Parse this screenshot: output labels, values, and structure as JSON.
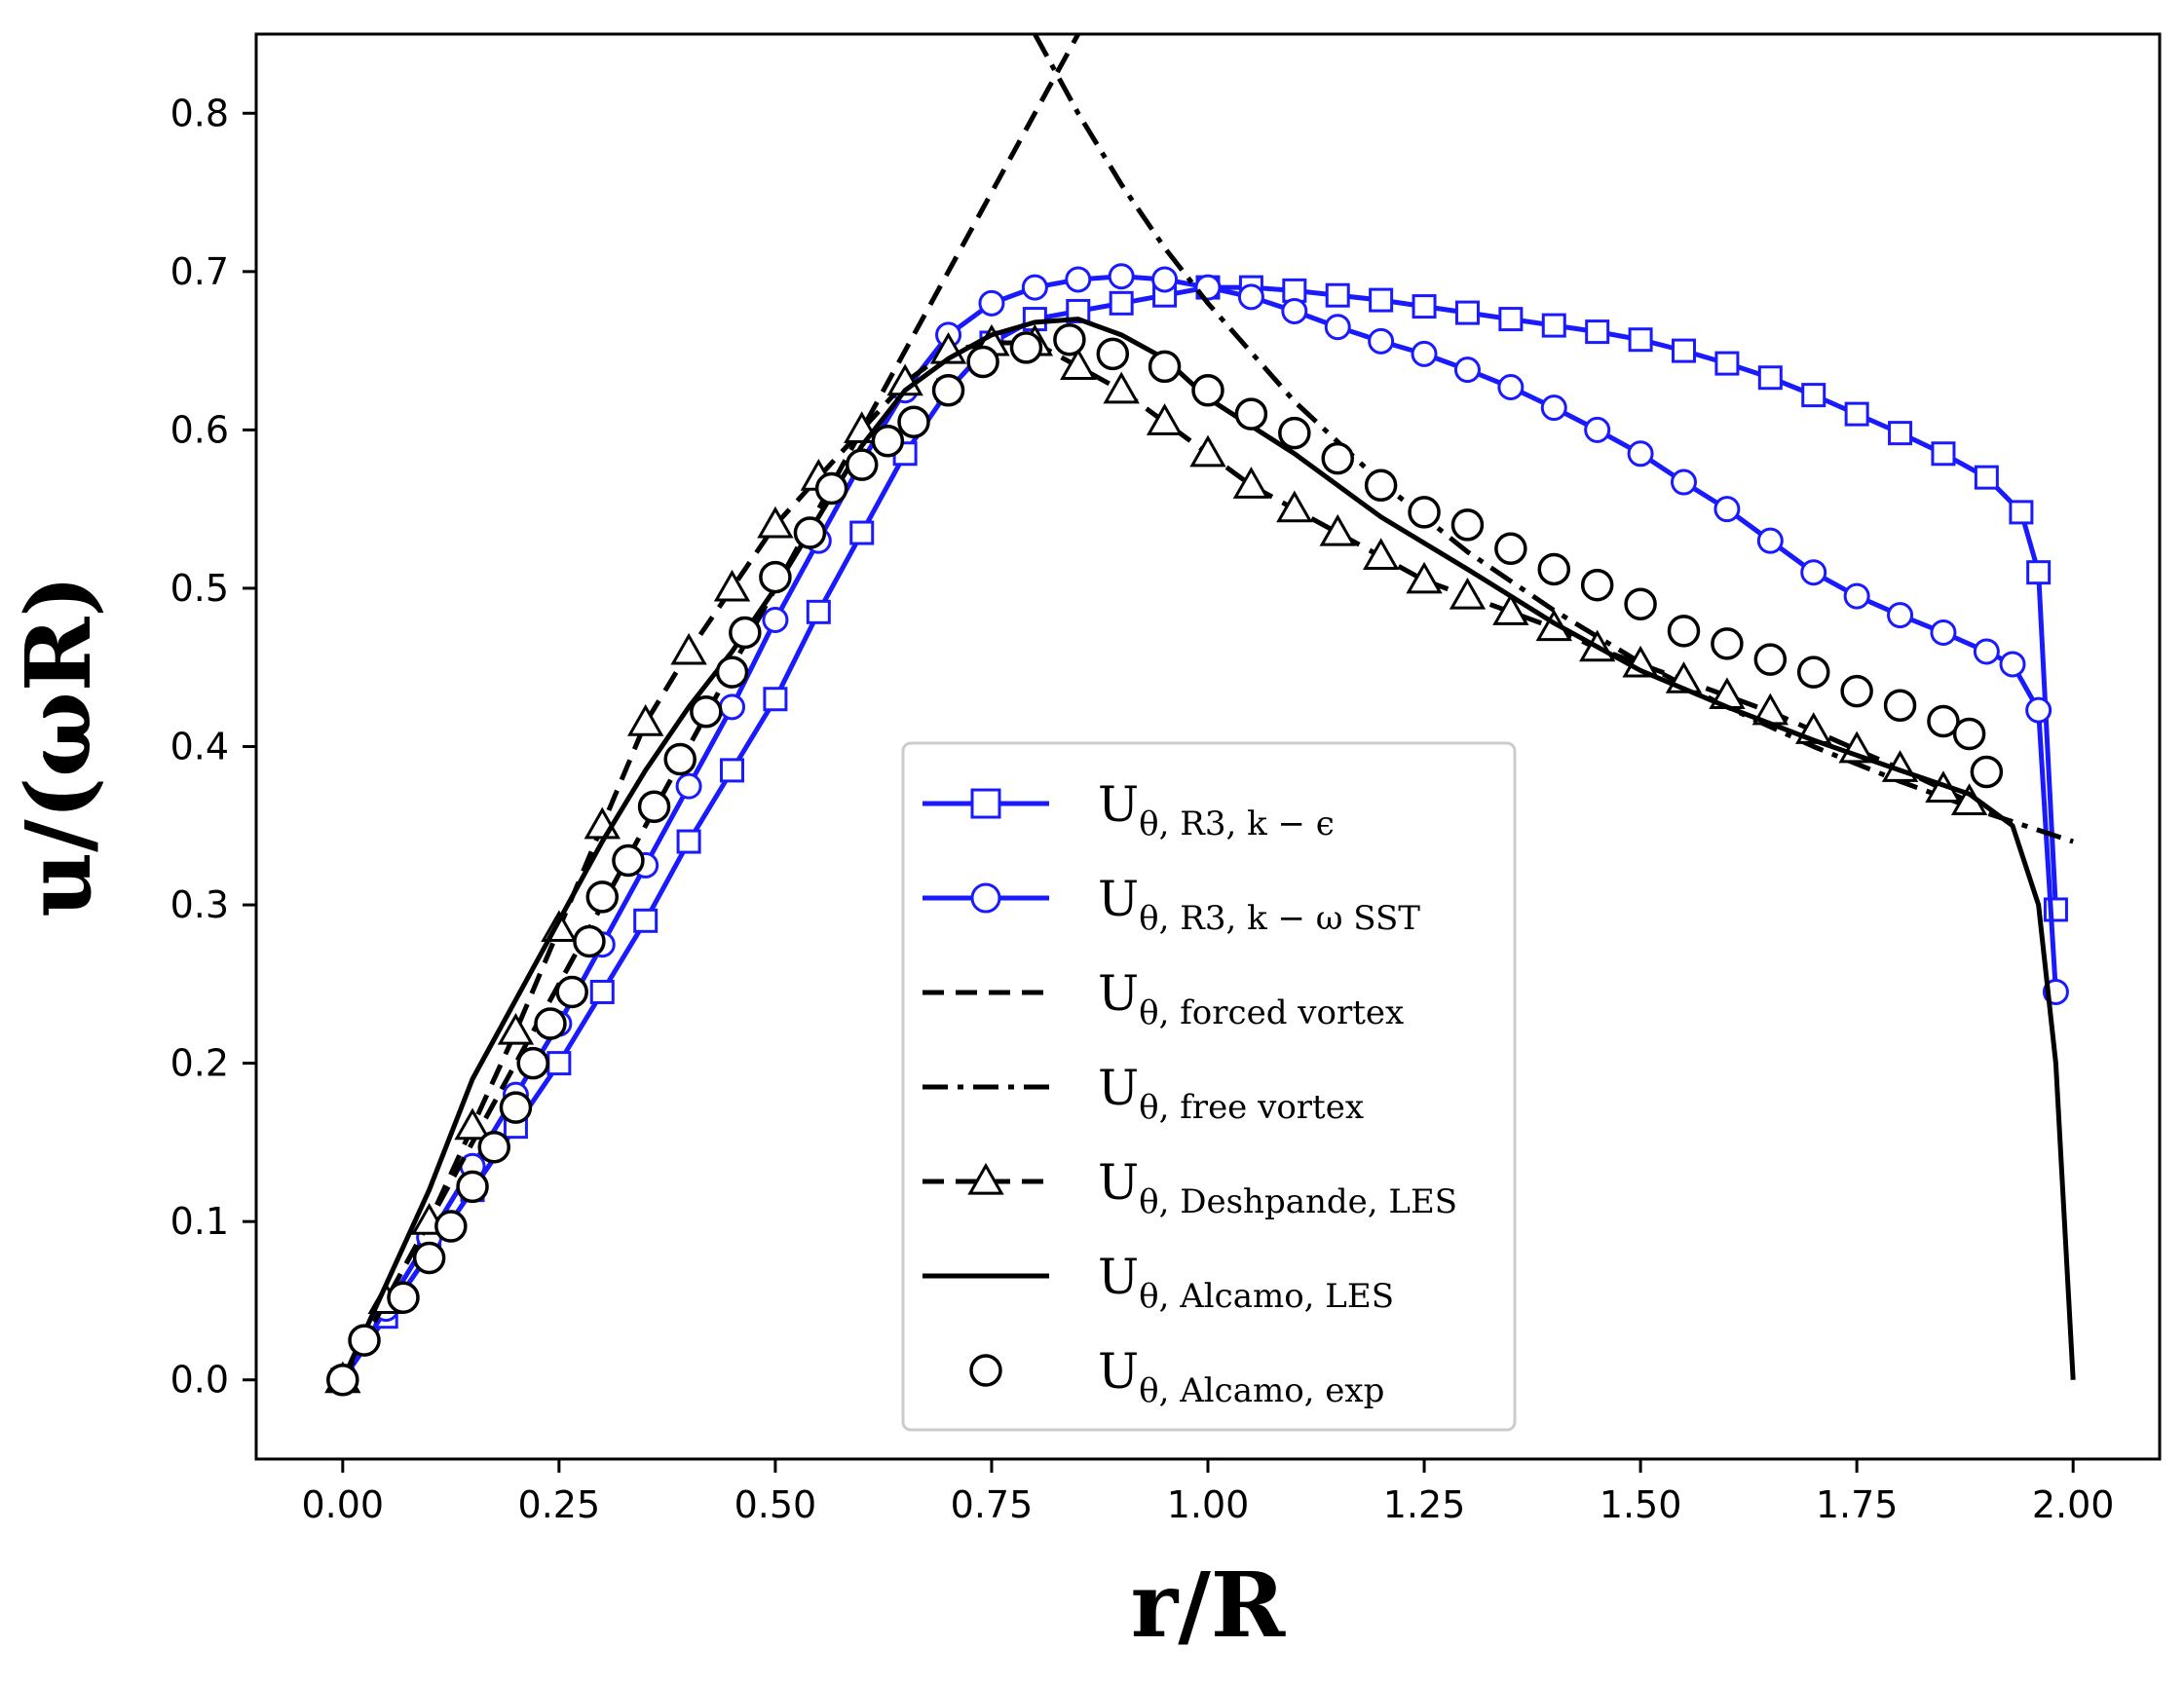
{
  "chart_data": {
    "type": "line",
    "xlabel": "r/R",
    "ylabel": "u/(ωR)",
    "xlim": [
      -0.1,
      2.1
    ],
    "ylim": [
      -0.05,
      0.85
    ],
    "xticks": [
      0.0,
      0.25,
      0.5,
      0.75,
      1.0,
      1.25,
      1.5,
      1.75,
      2.0
    ],
    "xtick_labels": [
      "0.00",
      "0.25",
      "0.50",
      "0.75",
      "1.00",
      "1.25",
      "1.50",
      "1.75",
      "2.00"
    ],
    "yticks": [
      0.0,
      0.1,
      0.2,
      0.3,
      0.4,
      0.5,
      0.6,
      0.7,
      0.8
    ],
    "ytick_labels": [
      "0.0",
      "0.1",
      "0.2",
      "0.3",
      "0.4",
      "0.5",
      "0.6",
      "0.7",
      "0.8"
    ],
    "grid": false,
    "legend_position": "lower-center",
    "series": [
      {
        "name": "U_{θ, R3, k − ε}",
        "legend_label": {
          "base": "U",
          "sub": "θ, R3, k − ϵ"
        },
        "color": "#1a1aff",
        "line": "solid",
        "marker": "square",
        "x": [
          0.0,
          0.05,
          0.1,
          0.15,
          0.2,
          0.25,
          0.3,
          0.35,
          0.4,
          0.45,
          0.5,
          0.55,
          0.6,
          0.65,
          0.7,
          0.75,
          0.8,
          0.85,
          0.9,
          0.95,
          1.0,
          1.05,
          1.1,
          1.15,
          1.2,
          1.25,
          1.3,
          1.35,
          1.4,
          1.45,
          1.5,
          1.55,
          1.6,
          1.65,
          1.7,
          1.75,
          1.8,
          1.85,
          1.9,
          1.94,
          1.96,
          1.98
        ],
        "y": [
          0.0,
          0.04,
          0.08,
          0.12,
          0.16,
          0.2,
          0.245,
          0.29,
          0.34,
          0.385,
          0.43,
          0.485,
          0.535,
          0.585,
          0.625,
          0.655,
          0.67,
          0.675,
          0.68,
          0.685,
          0.69,
          0.69,
          0.688,
          0.685,
          0.682,
          0.678,
          0.674,
          0.67,
          0.666,
          0.662,
          0.657,
          0.65,
          0.642,
          0.633,
          0.622,
          0.61,
          0.598,
          0.585,
          0.57,
          0.548,
          0.51,
          0.297
        ]
      },
      {
        "name": "U_{θ, R3, k − ω SST}",
        "legend_label": {
          "base": "U",
          "sub": "θ, R3, k − ω SST"
        },
        "color": "#1a1aff",
        "line": "solid",
        "marker": "circle",
        "x": [
          0.0,
          0.05,
          0.1,
          0.15,
          0.2,
          0.25,
          0.3,
          0.35,
          0.4,
          0.45,
          0.5,
          0.55,
          0.6,
          0.65,
          0.7,
          0.75,
          0.8,
          0.85,
          0.9,
          0.95,
          1.0,
          1.05,
          1.1,
          1.15,
          1.2,
          1.25,
          1.3,
          1.35,
          1.4,
          1.45,
          1.5,
          1.55,
          1.6,
          1.65,
          1.7,
          1.75,
          1.8,
          1.85,
          1.9,
          1.93,
          1.96,
          1.98
        ],
        "y": [
          0.0,
          0.045,
          0.09,
          0.135,
          0.18,
          0.225,
          0.275,
          0.325,
          0.375,
          0.425,
          0.48,
          0.53,
          0.58,
          0.625,
          0.66,
          0.68,
          0.69,
          0.695,
          0.697,
          0.695,
          0.69,
          0.684,
          0.675,
          0.665,
          0.656,
          0.648,
          0.638,
          0.627,
          0.614,
          0.6,
          0.585,
          0.567,
          0.55,
          0.53,
          0.51,
          0.495,
          0.483,
          0.472,
          0.46,
          0.452,
          0.423,
          0.245
        ]
      },
      {
        "name": "U_{θ, forced vortex}",
        "legend_label": {
          "base": "U",
          "sub": "θ, forced vortex"
        },
        "color": "#000000",
        "line": "dashed",
        "marker": "none",
        "x": [
          0.0,
          0.85
        ],
        "y": [
          0.0,
          0.85
        ]
      },
      {
        "name": "U_{θ, free vortex}",
        "legend_label": {
          "base": "U",
          "sub": "θ, free vortex"
        },
        "color": "#000000",
        "line": "dashdot",
        "marker": "none",
        "x": [
          0.8,
          0.82,
          0.85,
          0.9,
          0.95,
          1.0,
          1.1,
          1.2,
          1.3,
          1.4,
          1.5,
          1.6,
          1.7,
          1.8,
          1.9,
          2.0
        ],
        "y": [
          0.85,
          0.83,
          0.8,
          0.755,
          0.715,
          0.68,
          0.618,
          0.567,
          0.523,
          0.486,
          0.453,
          0.425,
          0.4,
          0.378,
          0.358,
          0.34
        ]
      },
      {
        "name": "U_{θ, Deshpande, LES}",
        "legend_label": {
          "base": "U",
          "sub": "θ, Deshpande, LES"
        },
        "color": "#000000",
        "line": "dashed",
        "marker": "triangle",
        "x": [
          0.0,
          0.05,
          0.1,
          0.15,
          0.2,
          0.25,
          0.3,
          0.35,
          0.4,
          0.45,
          0.5,
          0.55,
          0.6,
          0.65,
          0.7,
          0.75,
          0.8,
          0.85,
          0.9,
          0.95,
          1.0,
          1.05,
          1.1,
          1.15,
          1.2,
          1.25,
          1.3,
          1.35,
          1.4,
          1.45,
          1.5,
          1.55,
          1.6,
          1.65,
          1.7,
          1.75,
          1.8,
          1.85,
          1.88
        ],
        "y": [
          0.0,
          0.05,
          0.1,
          0.16,
          0.22,
          0.285,
          0.35,
          0.415,
          0.46,
          0.5,
          0.54,
          0.57,
          0.6,
          0.63,
          0.65,
          0.655,
          0.655,
          0.64,
          0.625,
          0.605,
          0.585,
          0.565,
          0.55,
          0.535,
          0.52,
          0.505,
          0.495,
          0.485,
          0.475,
          0.462,
          0.452,
          0.442,
          0.432,
          0.422,
          0.41,
          0.398,
          0.386,
          0.373,
          0.365
        ]
      },
      {
        "name": "U_{θ, Alcamo, LES}",
        "legend_label": {
          "base": "U",
          "sub": "θ, Alcamo, LES"
        },
        "color": "#000000",
        "line": "solid",
        "marker": "none",
        "x": [
          0.0,
          0.05,
          0.1,
          0.15,
          0.2,
          0.25,
          0.3,
          0.35,
          0.4,
          0.45,
          0.5,
          0.55,
          0.6,
          0.65,
          0.7,
          0.75,
          0.8,
          0.85,
          0.9,
          0.95,
          1.0,
          1.1,
          1.2,
          1.3,
          1.4,
          1.5,
          1.6,
          1.7,
          1.8,
          1.88,
          1.93,
          1.96,
          1.98,
          1.99,
          2.0
        ],
        "y": [
          0.0,
          0.06,
          0.12,
          0.19,
          0.24,
          0.29,
          0.34,
          0.385,
          0.425,
          0.46,
          0.5,
          0.545,
          0.59,
          0.625,
          0.645,
          0.66,
          0.668,
          0.67,
          0.66,
          0.645,
          0.62,
          0.585,
          0.545,
          0.512,
          0.478,
          0.448,
          0.425,
          0.404,
          0.385,
          0.37,
          0.35,
          0.3,
          0.2,
          0.1,
          0.0
        ]
      },
      {
        "name": "U_{θ, Alcamo, exp}",
        "legend_label": {
          "base": "U",
          "sub": "θ, Alcamo, exp"
        },
        "color": "#000000",
        "line": "none",
        "marker": "circle-open",
        "x": [
          0.0,
          0.025,
          0.07,
          0.1,
          0.125,
          0.15,
          0.175,
          0.2,
          0.22,
          0.24,
          0.265,
          0.285,
          0.3,
          0.33,
          0.36,
          0.39,
          0.42,
          0.45,
          0.465,
          0.5,
          0.54,
          0.565,
          0.6,
          0.63,
          0.66,
          0.7,
          0.74,
          0.79,
          0.84,
          0.89,
          0.95,
          1.0,
          1.05,
          1.1,
          1.15,
          1.2,
          1.25,
          1.3,
          1.35,
          1.4,
          1.45,
          1.5,
          1.55,
          1.6,
          1.65,
          1.7,
          1.75,
          1.8,
          1.85,
          1.88,
          1.9
        ],
        "y": [
          0.0,
          0.025,
          0.052,
          0.077,
          0.097,
          0.122,
          0.147,
          0.172,
          0.2,
          0.225,
          0.245,
          0.277,
          0.305,
          0.328,
          0.362,
          0.392,
          0.422,
          0.447,
          0.472,
          0.507,
          0.535,
          0.563,
          0.578,
          0.593,
          0.605,
          0.625,
          0.643,
          0.652,
          0.657,
          0.648,
          0.64,
          0.625,
          0.61,
          0.598,
          0.582,
          0.565,
          0.548,
          0.54,
          0.525,
          0.512,
          0.502,
          0.49,
          0.473,
          0.465,
          0.455,
          0.447,
          0.435,
          0.426,
          0.416,
          0.408,
          0.384
        ]
      }
    ]
  }
}
